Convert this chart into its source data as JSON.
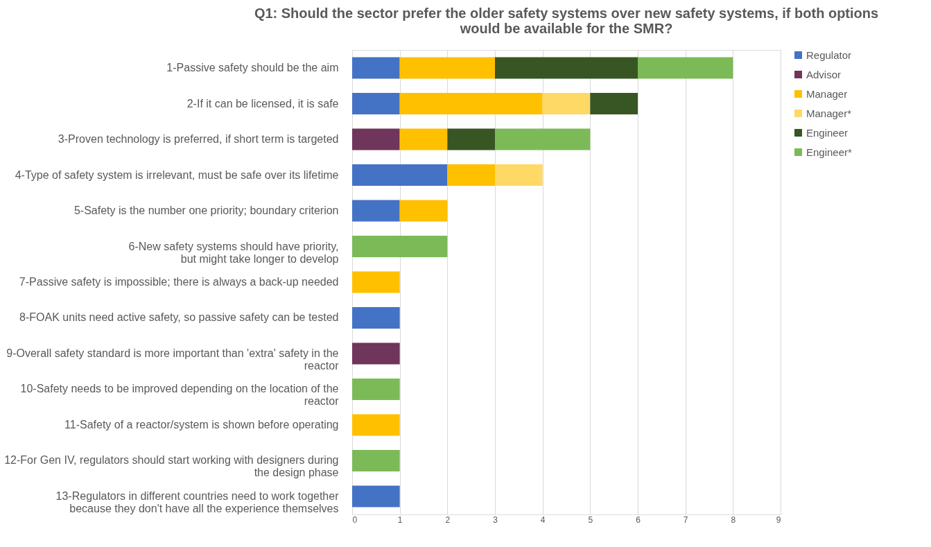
{
  "chart_data": {
    "type": "bar",
    "orientation": "horizontal",
    "stacked": true,
    "title": "Q1: Should the sector prefer the older safety systems over new safety systems, if both options\nwould be available for the SMR?",
    "categories": [
      "1-Passive safety should be the aim",
      "2-If it can be licensed, it is safe",
      "3-Proven technology is preferred, if short term is targeted",
      "4-Type of safety system is irrelevant, must be safe over its lifetime",
      "5-Safety is the number one priority; boundary criterion",
      "6-New safety systems should have priority,\nbut might take longer to develop",
      "7-Passive safety is impossible; there is always a back-up needed",
      "8-FOAK units need active safety, so passive safety can be tested",
      "9-Overall safety standard is more important than 'extra' safety in the\nreactor",
      "10-Safety needs to be improved depending on the location of the\nreactor",
      "11-Safety of a reactor/system is shown before operating",
      "12-For Gen IV, regulators should start working with designers during\nthe design phase",
      "13-Regulators in different countries need to work together\nbecause they don't have all the experience themselves"
    ],
    "series": [
      {
        "name": "Regulator",
        "color": "#4472c4",
        "values": [
          1,
          1,
          null,
          2,
          1,
          null,
          null,
          1,
          null,
          null,
          null,
          null,
          1
        ]
      },
      {
        "name": "Advisor",
        "color": "#70355a",
        "values": [
          null,
          null,
          1,
          null,
          null,
          null,
          null,
          null,
          1,
          null,
          null,
          null,
          null
        ]
      },
      {
        "name": "Manager",
        "color": "#ffc000",
        "values": [
          2,
          3,
          1,
          1,
          1,
          null,
          1,
          null,
          null,
          null,
          1,
          null,
          null
        ]
      },
      {
        "name": "Manager*",
        "color": "#ffd966",
        "values": [
          null,
          1,
          null,
          1,
          null,
          null,
          null,
          null,
          null,
          null,
          null,
          null,
          null
        ]
      },
      {
        "name": "Engineer",
        "color": "#375623",
        "values": [
          3,
          1,
          1,
          null,
          null,
          null,
          null,
          null,
          null,
          null,
          null,
          null,
          null
        ]
      },
      {
        "name": "Engineer*",
        "color": "#7cba57",
        "values": [
          2,
          null,
          2,
          null,
          null,
          2,
          null,
          null,
          null,
          1,
          null,
          1,
          null
        ]
      }
    ],
    "xlim": [
      0,
      9
    ],
    "xticks": [
      0,
      1,
      2,
      3,
      4,
      5,
      6,
      7,
      8,
      9
    ],
    "grid": "x",
    "legend": "right"
  }
}
